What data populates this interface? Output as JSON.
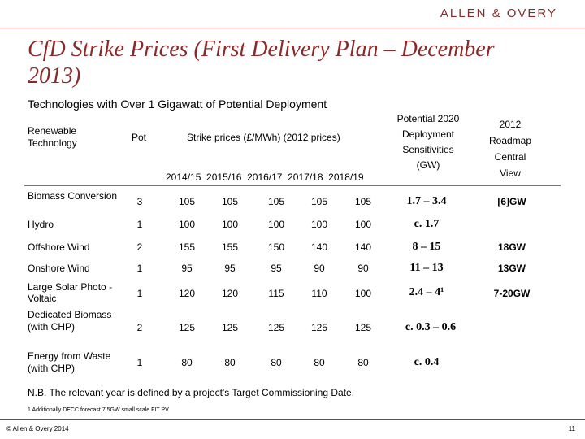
{
  "header": {
    "logo": "ALLEN & OVERY"
  },
  "slide": {
    "title": "CfD Strike Prices (First Delivery Plan – December 2013)",
    "subtitle": "Technologies with Over 1 Gigawatt of Potential Deployment"
  },
  "table": {
    "headers": {
      "technology": "Renewable Technology",
      "pot": "Pot",
      "strike": "Strike prices (£/MWh) (2012 prices)",
      "sensitivities": "Potential 2020 Deployment Sensitivities (GW)",
      "roadmap": "2012 Roadmap Central View",
      "years": "2014/15  2015/16  2016/17  2017/18  2018/19"
    },
    "rows": [
      {
        "technology": "Biomass Conversion",
        "pot": "3",
        "prices": [
          "105",
          "105",
          "105",
          "105",
          "105"
        ],
        "sensitivity": "1.7 – 3.4",
        "roadmap": "[6]GW"
      },
      {
        "technology": "Hydro",
        "pot": "1",
        "prices": [
          "100",
          "100",
          "100",
          "100",
          "100"
        ],
        "sensitivity": "c. 1.7",
        "roadmap": ""
      },
      {
        "technology": "Offshore Wind",
        "pot": "2",
        "prices": [
          "155",
          "155",
          "150",
          "140",
          "140"
        ],
        "sensitivity": "8 – 15",
        "roadmap": "18GW"
      },
      {
        "technology": "Onshore Wind",
        "pot": "1",
        "prices": [
          "95",
          "95",
          "95",
          "90",
          "90"
        ],
        "sensitivity": "11 – 13",
        "roadmap": "13GW"
      },
      {
        "technology": "Large Solar Photo -Voltaic",
        "pot": "1",
        "prices": [
          "120",
          "120",
          "115",
          "110",
          "100"
        ],
        "sensitivity": "2.4 – 4¹",
        "roadmap": "7-20GW"
      },
      {
        "technology": "Dedicated Biomass (with CHP)",
        "pot": "2",
        "prices": [
          "125",
          "125",
          "125",
          "125",
          "125"
        ],
        "sensitivity": "c. 0.3 – 0.6",
        "roadmap": ""
      },
      {
        "technology": "Energy from Waste (with CHP)",
        "pot": "1",
        "prices": [
          "80",
          "80",
          "80",
          "80",
          "80"
        ],
        "sensitivity": "c. 0.4",
        "roadmap": ""
      }
    ]
  },
  "note": "N.B. The relevant year is defined by a project's Target Commissioning Date.",
  "footnote": "1  Additionally DECC forecast 7.5GW small scale FIT PV",
  "footer": {
    "copyright": "© Allen & Overy 2014",
    "page": "11"
  }
}
